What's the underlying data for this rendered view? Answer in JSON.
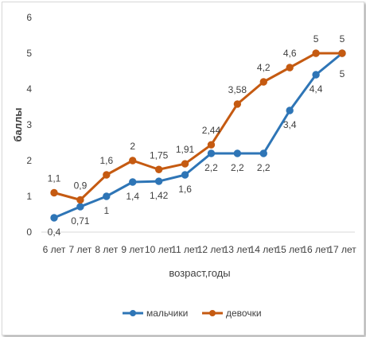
{
  "chart_data": {
    "type": "line",
    "title": "",
    "xlabel": "возраст,годы",
    "ylabel": "баллы",
    "categories": [
      "6 лет",
      "7 лет",
      "8 лет",
      "9 лет",
      "10 лет",
      "11 лет",
      "12 лет",
      "13 лет",
      "14 лет",
      "15 лет",
      "16 лет",
      "17 лет"
    ],
    "ylim": [
      0,
      6
    ],
    "yticks": [
      "0",
      "1",
      "2",
      "3",
      "4",
      "5",
      "6"
    ],
    "grid": false,
    "legend": "bottom",
    "series": [
      {
        "name": "мальчики",
        "color": "#2E75B6",
        "values": [
          0.4,
          0.71,
          1,
          1.4,
          1.42,
          1.6,
          2.2,
          2.2,
          2.2,
          3.4,
          4.4,
          5
        ],
        "labels": [
          "0,4",
          "0,71",
          "1",
          "1,4",
          "1,42",
          "1,6",
          "2,2",
          "2,2",
          "2,2",
          "3,4",
          "4,4",
          "5"
        ]
      },
      {
        "name": "девочки",
        "color": "#C55A11",
        "values": [
          1.1,
          0.9,
          1.6,
          2,
          1.75,
          1.91,
          2.44,
          3.58,
          4.2,
          4.6,
          5,
          5
        ],
        "labels": [
          "1,1",
          "0,9",
          "1,6",
          "2",
          "1,75",
          "1,91",
          "2,44",
          "3,58",
          "4,2",
          "4,6",
          "5",
          "5"
        ]
      }
    ]
  }
}
